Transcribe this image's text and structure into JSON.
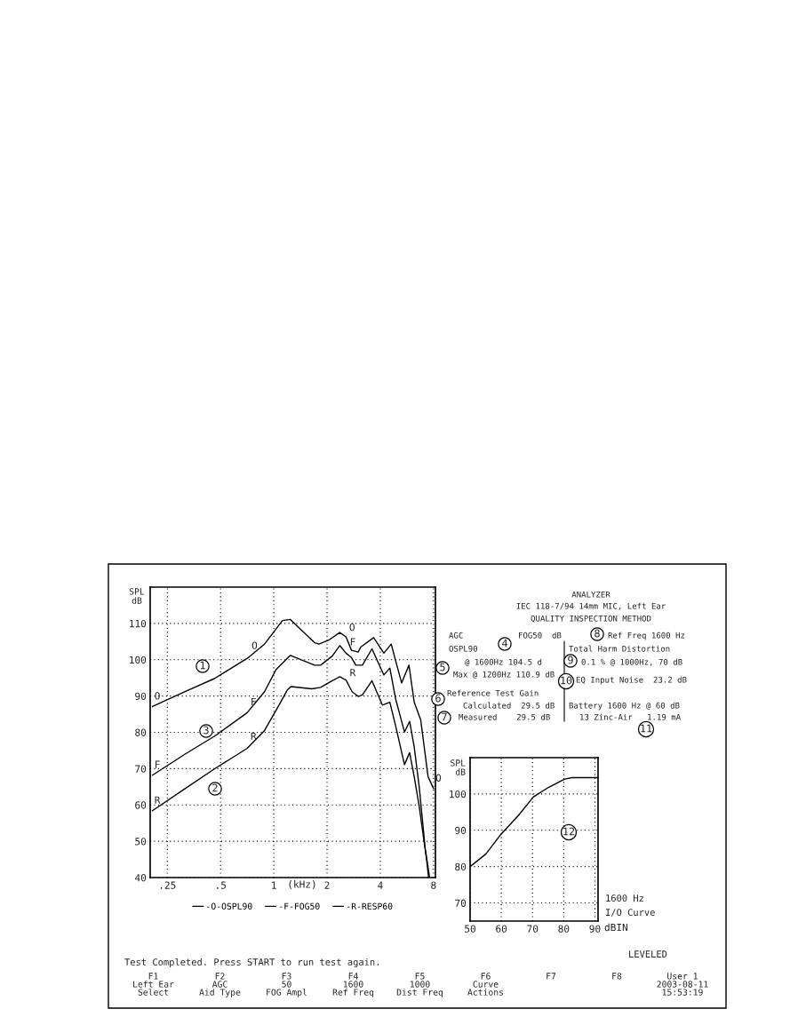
{
  "chart_data": [
    {
      "type": "line",
      "ylabel": "SPL\ndB",
      "xlabel": "(kHz)",
      "log": "x",
      "grid": true,
      "legend": "bottom",
      "line_style": "solid",
      "xlim": [
        0.2,
        8.2
      ],
      "xticks": [
        {
          "value": 0.25,
          "label": ".25"
        },
        {
          "value": 0.5,
          "label": ".5"
        },
        1,
        2,
        4,
        8
      ],
      "ylim": [
        40,
        120
      ],
      "yticks": [
        40,
        50,
        60,
        70,
        80,
        90,
        100,
        110
      ],
      "series": [
        {
          "name": "-O-OSPL90",
          "color": "#000000",
          "x": [
            0.206,
            0.315,
            0.461,
            0.718,
            0.886,
            1.12,
            1.24,
            1.7,
            1.8,
            2.06,
            2.36,
            2.56,
            2.75,
            3.0,
            3.1,
            3.67,
            4.19,
            4.61,
            5.28,
            5.81,
            6.22,
            6.77,
            7.45,
            8.0
          ],
          "values": [
            87.1,
            91.2,
            94.8,
            100.6,
            104.3,
            110.8,
            111.1,
            104.7,
            104.3,
            105.5,
            107.5,
            106.3,
            102.6,
            102.1,
            103.5,
            106.1,
            101.8,
            104.3,
            93.6,
            98.5,
            88.3,
            83.4,
            67.8,
            64.5
          ]
        },
        {
          "name": "-F-FOG50",
          "color": "#000000",
          "x": [
            0.206,
            0.315,
            0.461,
            0.707,
            0.886,
            1.03,
            1.24,
            1.7,
            1.84,
            2.14,
            2.36,
            2.56,
            2.75,
            2.91,
            3.17,
            3.59,
            4.19,
            4.53,
            4.89,
            5.48,
            5.86,
            6.22,
            6.64,
            7.17,
            7.6
          ],
          "values": [
            68.2,
            74.0,
            78.9,
            85.4,
            91.2,
            97.3,
            101.2,
            98.5,
            98.5,
            101.0,
            103.9,
            101.8,
            100.6,
            98.5,
            98.5,
            103.0,
            95.8,
            97.7,
            89.1,
            80.1,
            83.0,
            76.0,
            65.0,
            48.2,
            40
          ]
        },
        {
          "name": "-R-RESP60",
          "color": "#000000",
          "x": [
            0.206,
            0.315,
            0.461,
            0.707,
            0.886,
            1.07,
            1.19,
            1.25,
            1.64,
            1.84,
            2.14,
            2.36,
            2.56,
            2.77,
            3.0,
            3.17,
            3.59,
            4.11,
            4.53,
            4.89,
            5.48,
            5.86,
            6.22,
            6.64,
            7.31,
            7.5
          ],
          "values": [
            58.4,
            64.5,
            69.9,
            75.6,
            80.5,
            87.5,
            91.6,
            92.6,
            92.0,
            92.4,
            94.2,
            95.3,
            94.4,
            91.2,
            89.9,
            90.3,
            94.2,
            87.5,
            88.3,
            81.7,
            71.1,
            74.4,
            67.8,
            59.6,
            44.9,
            40
          ]
        }
      ],
      "annotations": [
        "ANALYZER",
        "IEC 118-7/94 14mm MIC, Left Ear",
        "QUALITY INSPECTION METHOD",
        "AGC",
        "OSPL90",
        "FOG50  dB",
        "@ 1600Hz 104.5 d",
        "Max @ 1200Hz 110.9 dB",
        "Reference Test Gain",
        "Calculated  29.5 dB",
        "Measured    29.5 dB",
        "Ref Freq 1600 Hz",
        "Total Harm Distortion",
        "0.1 % @ 1000Hz, 70 dB",
        "EQ Input Noise  23.2 dB",
        "Battery 1600 Hz @ 60 dB",
        "13 Zinc-Air   1.19 mA",
        "1",
        "2",
        "3",
        "4",
        "5",
        "6",
        "7",
        "8",
        "9",
        "10",
        "11",
        "12",
        "Test Completed. Press START to run test again.",
        "F1\nLeft Ear\nSelect",
        "F2\nAGC\nAid Type",
        "F3\n50\nFOG Ampl",
        "F4\n1600\nRef Freq",
        "F5\n1000\nDist Freq",
        "F6\nCurve\nActions",
        "F7",
        "F8",
        "User 1\n2003-08-11\n15:53:19",
        {
          "text": "O",
          "x": 0.206,
          "y": 87.1
        },
        {
          "text": "O",
          "x": 0.73,
          "y": 101
        },
        {
          "text": "O",
          "x": 2.6,
          "y": 106
        },
        {
          "text": "O",
          "x": 8.0,
          "y": 64.5
        },
        {
          "text": "F",
          "x": 0.206,
          "y": 68.2
        },
        {
          "text": "F",
          "x": 0.72,
          "y": 85.5
        },
        {
          "text": "F",
          "x": 2.62,
          "y": 102
        },
        {
          "text": "R",
          "x": 0.206,
          "y": 58.4
        },
        {
          "text": "R",
          "x": 0.72,
          "y": 76
        },
        {
          "text": "R",
          "x": 2.62,
          "y": 93.5
        }
      ]
    },
    {
      "type": "line",
      "ylabel": "SPL\ndB",
      "xlabel": "dBIN",
      "grid": true,
      "line_style": "solid",
      "xlim": [
        50,
        91
      ],
      "xticks": [
        50,
        60,
        70,
        80,
        90
      ],
      "ylim": [
        65,
        110
      ],
      "yticks": [
        70,
        80,
        90,
        100
      ],
      "series": [
        {
          "color": "#000000",
          "x": [
            50,
            55.1,
            59.8,
            65.5,
            70.3,
            75.1,
            80.3,
            82.7,
            91
          ],
          "values": [
            80.0,
            83.5,
            88.8,
            94.1,
            99.2,
            101.8,
            104.1,
            104.5,
            104.5
          ]
        }
      ],
      "annotations": [
        "1600 Hz",
        "I/O Curve",
        "LEVELED"
      ]
    }
  ]
}
